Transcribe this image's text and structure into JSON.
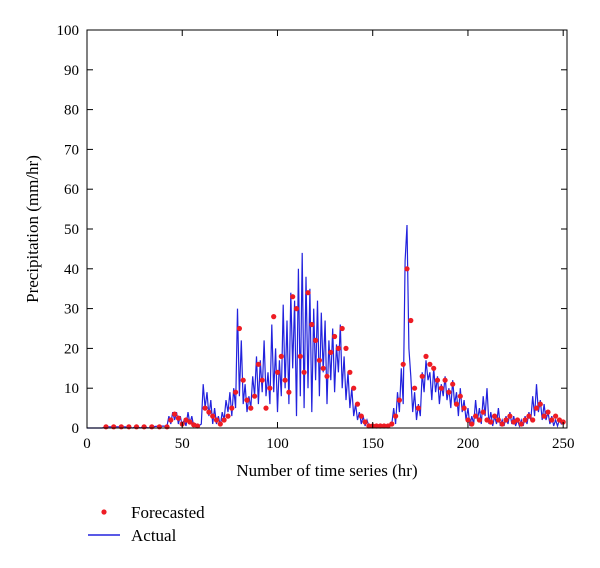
{
  "chart_data": {
    "type": "line",
    "xlabel": "Number of time series (hr)",
    "ylabel": "Precipitation (mm/hr)",
    "xlim": [
      0,
      252
    ],
    "ylim": [
      0,
      100
    ],
    "x_ticks": [
      "0",
      "50",
      "100",
      "150",
      "200",
      "250"
    ],
    "y_ticks": [
      "0",
      "10",
      "20",
      "30",
      "40",
      "50",
      "60",
      "70",
      "80",
      "90",
      "100"
    ],
    "grid": false,
    "legend_position": "bottom-left, below plot",
    "colors": {
      "forecasted": "#ee1c24",
      "actual": "#2222dd"
    },
    "series": [
      {
        "name": "Forecasted",
        "style": "markers",
        "points": [
          [
            10,
            0.3
          ],
          [
            14,
            0.3
          ],
          [
            18,
            0.3
          ],
          [
            22,
            0.3
          ],
          [
            26,
            0.3
          ],
          [
            30,
            0.3
          ],
          [
            34,
            0.3
          ],
          [
            38,
            0.3
          ],
          [
            42,
            0.3
          ],
          [
            44,
            2
          ],
          [
            46,
            3.5
          ],
          [
            48,
            2.5
          ],
          [
            50,
            1
          ],
          [
            52,
            2
          ],
          [
            54,
            1.5
          ],
          [
            56,
            0.8
          ],
          [
            58,
            0.5
          ],
          [
            62,
            5
          ],
          [
            64,
            4
          ],
          [
            66,
            3
          ],
          [
            68,
            2
          ],
          [
            70,
            1
          ],
          [
            72,
            2
          ],
          [
            74,
            3
          ],
          [
            76,
            5
          ],
          [
            78,
            9
          ],
          [
            80,
            25
          ],
          [
            82,
            12
          ],
          [
            84,
            7
          ],
          [
            86,
            5
          ],
          [
            88,
            8
          ],
          [
            90,
            16
          ],
          [
            92,
            12
          ],
          [
            94,
            5
          ],
          [
            96,
            10
          ],
          [
            98,
            28
          ],
          [
            100,
            14
          ],
          [
            102,
            18
          ],
          [
            104,
            12
          ],
          [
            106,
            9
          ],
          [
            108,
            33
          ],
          [
            110,
            30
          ],
          [
            112,
            18
          ],
          [
            114,
            14
          ],
          [
            116,
            34
          ],
          [
            118,
            26
          ],
          [
            120,
            22
          ],
          [
            122,
            17
          ],
          [
            124,
            15
          ],
          [
            126,
            13
          ],
          [
            128,
            19
          ],
          [
            130,
            23
          ],
          [
            132,
            20
          ],
          [
            134,
            25
          ],
          [
            136,
            20
          ],
          [
            138,
            14
          ],
          [
            140,
            10
          ],
          [
            142,
            6
          ],
          [
            144,
            3
          ],
          [
            146,
            1.5
          ],
          [
            148,
            0.5
          ],
          [
            150,
            0.5
          ],
          [
            152,
            0.5
          ],
          [
            154,
            0.5
          ],
          [
            156,
            0.5
          ],
          [
            158,
            0.5
          ],
          [
            160,
            1
          ],
          [
            162,
            3
          ],
          [
            164,
            7
          ],
          [
            166,
            16
          ],
          [
            168,
            40
          ],
          [
            170,
            27
          ],
          [
            172,
            10
          ],
          [
            174,
            5
          ],
          [
            176,
            13
          ],
          [
            178,
            18
          ],
          [
            180,
            16
          ],
          [
            182,
            15
          ],
          [
            184,
            12
          ],
          [
            186,
            10
          ],
          [
            188,
            12
          ],
          [
            190,
            9
          ],
          [
            192,
            11
          ],
          [
            194,
            6
          ],
          [
            196,
            8
          ],
          [
            198,
            5
          ],
          [
            200,
            2
          ],
          [
            202,
            1
          ],
          [
            204,
            3
          ],
          [
            206,
            2
          ],
          [
            208,
            4
          ],
          [
            210,
            2
          ],
          [
            212,
            1.5
          ],
          [
            214,
            3
          ],
          [
            216,
            2
          ],
          [
            218,
            1
          ],
          [
            220,
            2
          ],
          [
            222,
            3
          ],
          [
            224,
            1.5
          ],
          [
            226,
            2
          ],
          [
            228,
            1
          ],
          [
            230,
            2
          ],
          [
            232,
            3
          ],
          [
            234,
            2
          ],
          [
            236,
            5
          ],
          [
            238,
            6
          ],
          [
            240,
            3
          ],
          [
            242,
            4
          ],
          [
            244,
            2
          ],
          [
            246,
            3
          ],
          [
            248,
            2
          ],
          [
            250,
            1.5
          ]
        ]
      },
      {
        "name": "Actual",
        "style": "line",
        "points": [
          [
            0,
            0
          ],
          [
            8,
            0
          ],
          [
            10,
            0.3
          ],
          [
            20,
            0.3
          ],
          [
            24,
            0
          ],
          [
            26,
            0.5
          ],
          [
            28,
            0
          ],
          [
            30,
            0.5
          ],
          [
            32,
            0
          ],
          [
            36,
            0.4
          ],
          [
            42,
            0.5
          ],
          [
            43,
            3
          ],
          [
            44,
            1
          ],
          [
            45,
            4
          ],
          [
            46,
            2
          ],
          [
            47,
            4
          ],
          [
            48,
            1
          ],
          [
            49,
            3
          ],
          [
            50,
            0.5
          ],
          [
            51,
            2
          ],
          [
            52,
            0.5
          ],
          [
            53,
            4
          ],
          [
            54,
            1
          ],
          [
            55,
            3
          ],
          [
            56,
            0.5
          ],
          [
            57,
            1
          ],
          [
            58,
            0.3
          ],
          [
            60,
            1
          ],
          [
            61,
            11
          ],
          [
            62,
            5
          ],
          [
            63,
            9
          ],
          [
            64,
            3
          ],
          [
            65,
            7
          ],
          [
            66,
            1
          ],
          [
            67,
            5
          ],
          [
            68,
            1
          ],
          [
            69,
            3
          ],
          [
            70,
            0.5
          ],
          [
            71,
            4
          ],
          [
            72,
            2
          ],
          [
            73,
            7
          ],
          [
            74,
            4
          ],
          [
            75,
            9
          ],
          [
            76,
            3
          ],
          [
            77,
            10
          ],
          [
            78,
            5
          ],
          [
            79,
            30
          ],
          [
            80,
            8
          ],
          [
            81,
            22
          ],
          [
            82,
            6
          ],
          [
            83,
            11
          ],
          [
            84,
            4
          ],
          [
            85,
            8
          ],
          [
            86,
            5
          ],
          [
            87,
            13
          ],
          [
            88,
            8
          ],
          [
            89,
            18
          ],
          [
            90,
            6
          ],
          [
            91,
            17
          ],
          [
            92,
            9
          ],
          [
            93,
            22
          ],
          [
            94,
            8
          ],
          [
            95,
            14
          ],
          [
            96,
            6
          ],
          [
            97,
            26
          ],
          [
            98,
            9
          ],
          [
            99,
            20
          ],
          [
            100,
            4
          ],
          [
            101,
            17
          ],
          [
            102,
            8
          ],
          [
            103,
            31
          ],
          [
            104,
            10
          ],
          [
            105,
            27
          ],
          [
            106,
            6
          ],
          [
            107,
            34
          ],
          [
            108,
            15
          ],
          [
            109,
            32
          ],
          [
            110,
            3
          ],
          [
            111,
            40
          ],
          [
            112,
            8
          ],
          [
            113,
            44
          ],
          [
            114,
            5
          ],
          [
            115,
            38
          ],
          [
            116,
            10
          ],
          [
            117,
            35
          ],
          [
            118,
            4
          ],
          [
            119,
            30
          ],
          [
            120,
            12
          ],
          [
            121,
            32
          ],
          [
            122,
            8
          ],
          [
            123,
            29
          ],
          [
            124,
            14
          ],
          [
            125,
            27
          ],
          [
            126,
            6
          ],
          [
            127,
            22
          ],
          [
            128,
            12
          ],
          [
            129,
            25
          ],
          [
            130,
            9
          ],
          [
            131,
            21
          ],
          [
            132,
            14
          ],
          [
            133,
            26
          ],
          [
            134,
            10
          ],
          [
            135,
            18
          ],
          [
            136,
            7
          ],
          [
            137,
            14
          ],
          [
            138,
            5
          ],
          [
            139,
            10
          ],
          [
            140,
            3
          ],
          [
            141,
            6
          ],
          [
            142,
            2
          ],
          [
            143,
            4
          ],
          [
            144,
            1
          ],
          [
            145,
            3
          ],
          [
            146,
            0.5
          ],
          [
            147,
            2
          ],
          [
            148,
            0.5
          ],
          [
            150,
            0.5
          ],
          [
            156,
            0.5
          ],
          [
            158,
            0.3
          ],
          [
            160,
            1
          ],
          [
            161,
            5
          ],
          [
            162,
            1
          ],
          [
            163,
            9
          ],
          [
            164,
            4
          ],
          [
            165,
            15
          ],
          [
            166,
            6
          ],
          [
            167,
            42
          ],
          [
            168,
            51
          ],
          [
            169,
            20
          ],
          [
            170,
            13
          ],
          [
            171,
            4
          ],
          [
            172,
            9
          ],
          [
            173,
            2
          ],
          [
            174,
            6
          ],
          [
            175,
            3
          ],
          [
            176,
            14
          ],
          [
            177,
            9
          ],
          [
            178,
            17
          ],
          [
            179,
            12
          ],
          [
            180,
            14
          ],
          [
            181,
            7
          ],
          [
            182,
            15
          ],
          [
            183,
            9
          ],
          [
            184,
            13
          ],
          [
            185,
            6
          ],
          [
            186,
            11
          ],
          [
            187,
            8
          ],
          [
            188,
            13
          ],
          [
            189,
            7
          ],
          [
            190,
            10
          ],
          [
            191,
            5
          ],
          [
            192,
            12
          ],
          [
            193,
            6
          ],
          [
            194,
            9
          ],
          [
            195,
            3
          ],
          [
            196,
            10
          ],
          [
            197,
            4
          ],
          [
            198,
            7
          ],
          [
            199,
            2
          ],
          [
            200,
            5
          ],
          [
            201,
            0.5
          ],
          [
            202,
            3
          ],
          [
            203,
            1
          ],
          [
            204,
            7
          ],
          [
            205,
            2
          ],
          [
            206,
            5
          ],
          [
            207,
            1
          ],
          [
            208,
            8
          ],
          [
            209,
            3
          ],
          [
            210,
            10
          ],
          [
            211,
            1
          ],
          [
            212,
            4
          ],
          [
            213,
            0.5
          ],
          [
            214,
            3
          ],
          [
            215,
            1
          ],
          [
            216,
            5
          ],
          [
            217,
            0.5
          ],
          [
            218,
            2
          ],
          [
            219,
            0.5
          ],
          [
            220,
            3
          ],
          [
            221,
            1
          ],
          [
            222,
            4
          ],
          [
            223,
            1
          ],
          [
            224,
            3
          ],
          [
            225,
            0.5
          ],
          [
            226,
            2
          ],
          [
            227,
            0.5
          ],
          [
            228,
            2
          ],
          [
            229,
            0.5
          ],
          [
            230,
            3
          ],
          [
            231,
            1
          ],
          [
            232,
            4
          ],
          [
            233,
            2
          ],
          [
            234,
            8
          ],
          [
            235,
            3
          ],
          [
            236,
            11
          ],
          [
            237,
            4
          ],
          [
            238,
            7
          ],
          [
            239,
            2
          ],
          [
            240,
            6
          ],
          [
            241,
            2
          ],
          [
            242,
            4
          ],
          [
            243,
            1
          ],
          [
            244,
            3
          ],
          [
            245,
            0.5
          ],
          [
            246,
            2
          ],
          [
            247,
            0.5
          ],
          [
            248,
            2
          ],
          [
            249,
            1
          ],
          [
            250,
            1.5
          ]
        ]
      }
    ]
  }
}
